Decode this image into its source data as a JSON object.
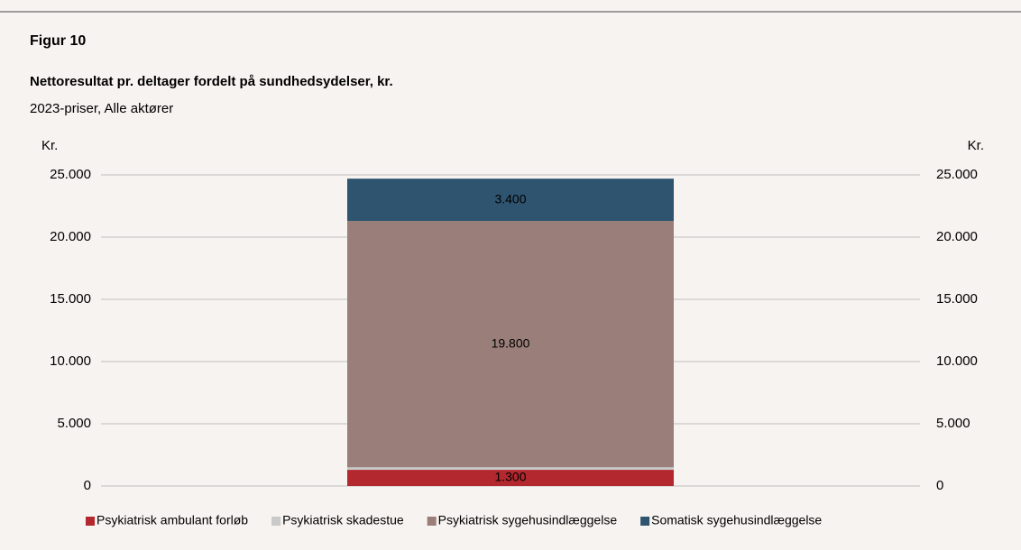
{
  "chart_data": {
    "type": "stacked_bar",
    "title": "Figur 10",
    "subtitle": "Nettoresultat pr. deltager fordelt på sundhedsydelser, kr.",
    "note": "2023-priser, Alle aktører",
    "yaxis_label": "Kr.",
    "y2axis_label": "Kr.",
    "categories": [
      null
    ],
    "series": [
      {
        "name": "Psykiatrisk ambulant forløb",
        "color": "#b3282e",
        "values": [
          1300
        ],
        "value_labels": [
          "1.300"
        ]
      },
      {
        "name": "Psykiatrisk skadestue",
        "color": "#c9c9c9",
        "values": [
          200
        ],
        "value_labels": [
          "200"
        ]
      },
      {
        "name": "Psykiatrisk sygehusindlæggelse",
        "color": "#9a7e79",
        "values": [
          19800
        ],
        "value_labels": [
          "19.800"
        ]
      },
      {
        "name": "Somatisk sygehusindlæggelse",
        "color": "#2f546f",
        "values": [
          3400
        ],
        "value_labels": [
          "3.400"
        ]
      }
    ],
    "ylim": [
      0,
      25000
    ],
    "yticks": [
      0,
      {
        "value": 5000,
        "label": "5.000"
      },
      {
        "value": 10000,
        "label": "10.000"
      },
      {
        "value": 15000,
        "label": "15.000"
      },
      {
        "value": 20000,
        "label": "20.000"
      },
      {
        "value": 25000,
        "label": "25.000"
      }
    ],
    "y2lim": [
      0,
      25000
    ],
    "y2ticks": [
      0,
      {
        "value": 5000,
        "label": "5.000"
      },
      {
        "value": 10000,
        "label": "10.000"
      },
      {
        "value": 15000,
        "label": "15.000"
      },
      {
        "value": 20000,
        "label": "20.000"
      },
      {
        "value": 25000,
        "label": "25.000"
      }
    ],
    "grid": true
  }
}
